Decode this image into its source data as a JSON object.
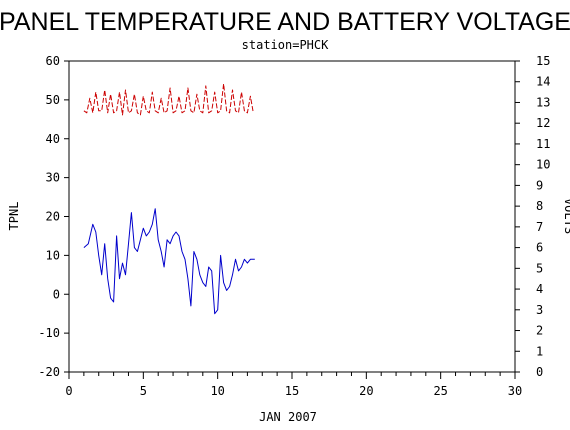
{
  "chart_data": {
    "type": "line",
    "title": "PANEL TEMPERATURE AND BATTERY VOLTAGE",
    "subtitle": "station=PHCK",
    "xlabel": "JAN 2007",
    "ylabel_left": "TPNL",
    "ylabel_right": "VOLTS",
    "xlim": [
      0,
      30
    ],
    "ylim_left": [
      -20,
      60
    ],
    "ylim_right": [
      0,
      15
    ],
    "x_ticks": [
      "0",
      "5",
      "10",
      "15",
      "20",
      "25",
      "30"
    ],
    "y_left_ticks": [
      "-20",
      "-10",
      "0",
      "10",
      "20",
      "30",
      "40",
      "50",
      "60"
    ],
    "y_right_ticks": [
      "0",
      "1",
      "2",
      "3",
      "4",
      "5",
      "6",
      "7",
      "8",
      "9",
      "10",
      "11",
      "12",
      "13",
      "14",
      "15"
    ],
    "grid": false,
    "series": [
      {
        "name": "",
        "axis": "left",
        "color": "#0000cc",
        "style": "solid",
        "x": [
          1.0,
          1.3,
          1.6,
          1.8,
          2.0,
          2.2,
          2.4,
          2.6,
          2.8,
          3.0,
          3.2,
          3.4,
          3.6,
          3.8,
          4.0,
          4.2,
          4.4,
          4.6,
          4.8,
          5.0,
          5.2,
          5.4,
          5.6,
          5.8,
          6.0,
          6.2,
          6.4,
          6.6,
          6.8,
          7.0,
          7.2,
          7.4,
          7.6,
          7.8,
          8.0,
          8.2,
          8.4,
          8.6,
          8.8,
          9.0,
          9.2,
          9.4,
          9.6,
          9.8,
          10.0,
          10.2,
          10.4,
          10.6,
          10.8,
          11.0,
          11.2,
          11.4,
          11.6,
          11.8,
          12.0,
          12.2,
          12.5
        ],
        "y": [
          12,
          13,
          18,
          16,
          10,
          5,
          13,
          4,
          -1,
          -2,
          15,
          4,
          8,
          5,
          13,
          21,
          12,
          11,
          14,
          17,
          15,
          16,
          18,
          22,
          14,
          11,
          7,
          14,
          13,
          15,
          16,
          15,
          11,
          9,
          4,
          -3,
          11,
          9,
          5,
          3,
          2,
          7,
          6,
          -5,
          -4,
          10,
          3,
          1,
          2,
          5,
          9,
          6,
          7,
          9,
          8,
          9,
          9
        ]
      },
      {
        "name": "",
        "axis": "right",
        "color": "#cc0000",
        "style": "dashed",
        "x": [
          1.0,
          1.2,
          1.4,
          1.6,
          1.8,
          2.0,
          2.2,
          2.4,
          2.6,
          2.8,
          3.0,
          3.2,
          3.4,
          3.6,
          3.8,
          4.0,
          4.2,
          4.4,
          4.6,
          4.8,
          5.0,
          5.2,
          5.4,
          5.6,
          5.8,
          6.0,
          6.2,
          6.4,
          6.6,
          6.8,
          7.0,
          7.2,
          7.4,
          7.6,
          7.8,
          8.0,
          8.2,
          8.4,
          8.6,
          8.8,
          9.0,
          9.2,
          9.4,
          9.6,
          9.8,
          10.0,
          10.2,
          10.4,
          10.6,
          10.8,
          11.0,
          11.2,
          11.4,
          11.6,
          11.8,
          12.0,
          12.2,
          12.4
        ],
        "y": [
          12.6,
          12.5,
          13.2,
          12.5,
          13.5,
          12.6,
          12.6,
          13.6,
          12.5,
          13.4,
          12.5,
          12.6,
          13.5,
          12.4,
          13.6,
          12.5,
          12.6,
          13.4,
          12.5,
          12.4,
          13.3,
          12.6,
          12.5,
          13.5,
          12.6,
          12.5,
          13.2,
          12.5,
          12.6,
          13.7,
          12.5,
          12.6,
          13.3,
          12.5,
          12.6,
          13.7,
          12.6,
          12.5,
          13.4,
          12.6,
          12.5,
          13.8,
          12.5,
          12.6,
          13.5,
          12.5,
          12.6,
          13.9,
          12.6,
          12.5,
          13.6,
          12.6,
          12.5,
          13.5,
          12.6,
          12.5,
          13.3,
          12.5
        ]
      }
    ]
  }
}
